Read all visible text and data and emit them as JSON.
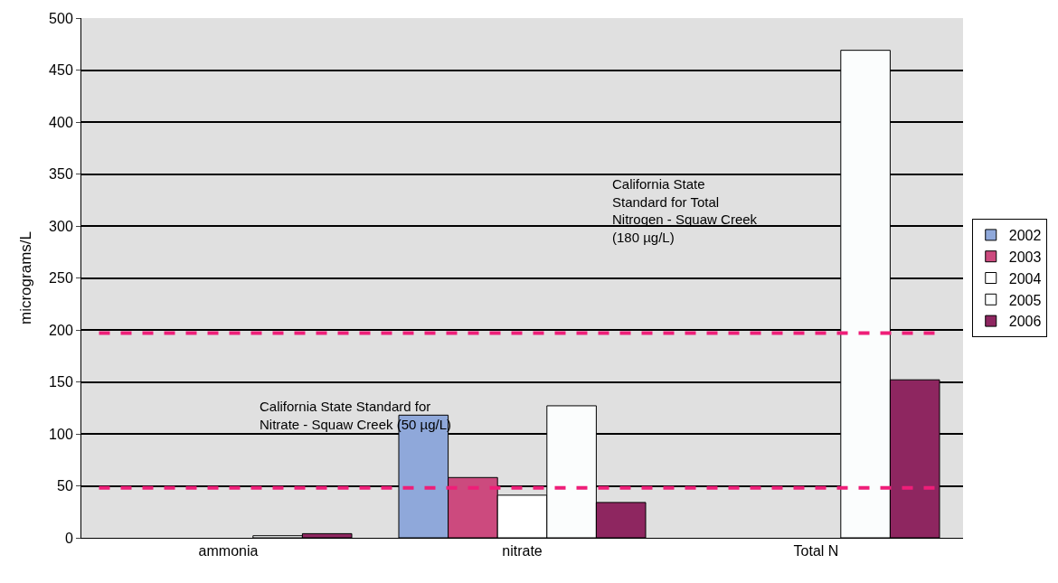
{
  "chart_data": {
    "type": "bar",
    "ylabel": "micrograms/L",
    "categories": [
      "ammonia",
      "nitrate",
      "Total N"
    ],
    "series": [
      {
        "name": "2002",
        "color": "#8fa8da",
        "values": [
          null,
          118,
          null
        ]
      },
      {
        "name": "2003",
        "color": "#cc4a7e",
        "values": [
          null,
          58,
          null
        ]
      },
      {
        "name": "2004",
        "color": "#ffffff",
        "values": [
          null,
          41,
          null
        ]
      },
      {
        "name": "2005",
        "color": "#fbfdfd",
        "values": [
          2,
          127,
          469
        ]
      },
      {
        "name": "2006",
        "color": "#8e2660",
        "values": [
          4,
          34,
          152
        ]
      }
    ],
    "ylim": [
      0,
      500
    ],
    "yticks": [
      0,
      50,
      100,
      150,
      200,
      250,
      300,
      350,
      400,
      450,
      500
    ],
    "grid": "y",
    "legend": "right",
    "ref_lines": [
      {
        "axis": "y",
        "value": 48,
        "color": "#ee1e78",
        "line_style": "dashed"
      },
      {
        "axis": "y",
        "value": 197,
        "color": "#ee1e78",
        "line_style": "dashed"
      }
    ],
    "annotations": [
      "California State Standard for Nitrate - Squaw Creek (50 µg/L)",
      "California State Standard for Total Nitrogen - Squaw Creek (180 µg/L)"
    ]
  }
}
